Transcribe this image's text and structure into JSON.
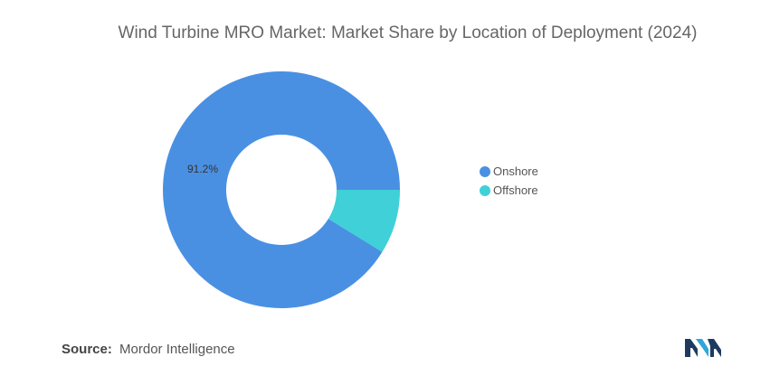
{
  "title": "Wind Turbine MRO Market: Market Share by Location of Deployment (2024)",
  "source": {
    "label": "Source:",
    "value": "Mordor Intelligence"
  },
  "logo": {
    "name": "mordor-intelligence-logo",
    "colors": [
      "#1f3a5f",
      "#2ea7d8"
    ]
  },
  "colors": {
    "onshore": "#4a90e2",
    "offshore": "#3fd0d8"
  },
  "chart_data": {
    "type": "pie",
    "title": "Wind Turbine MRO Market: Market Share by Location of Deployment (2024)",
    "categories": [
      "Onshore",
      "Offshore"
    ],
    "values": [
      91.2,
      8.8
    ],
    "unit": "%",
    "data_labels": [
      "91.2%",
      ""
    ],
    "legend": {
      "position": "right",
      "entries": [
        "Onshore",
        "Offshore"
      ]
    },
    "donut": true
  }
}
